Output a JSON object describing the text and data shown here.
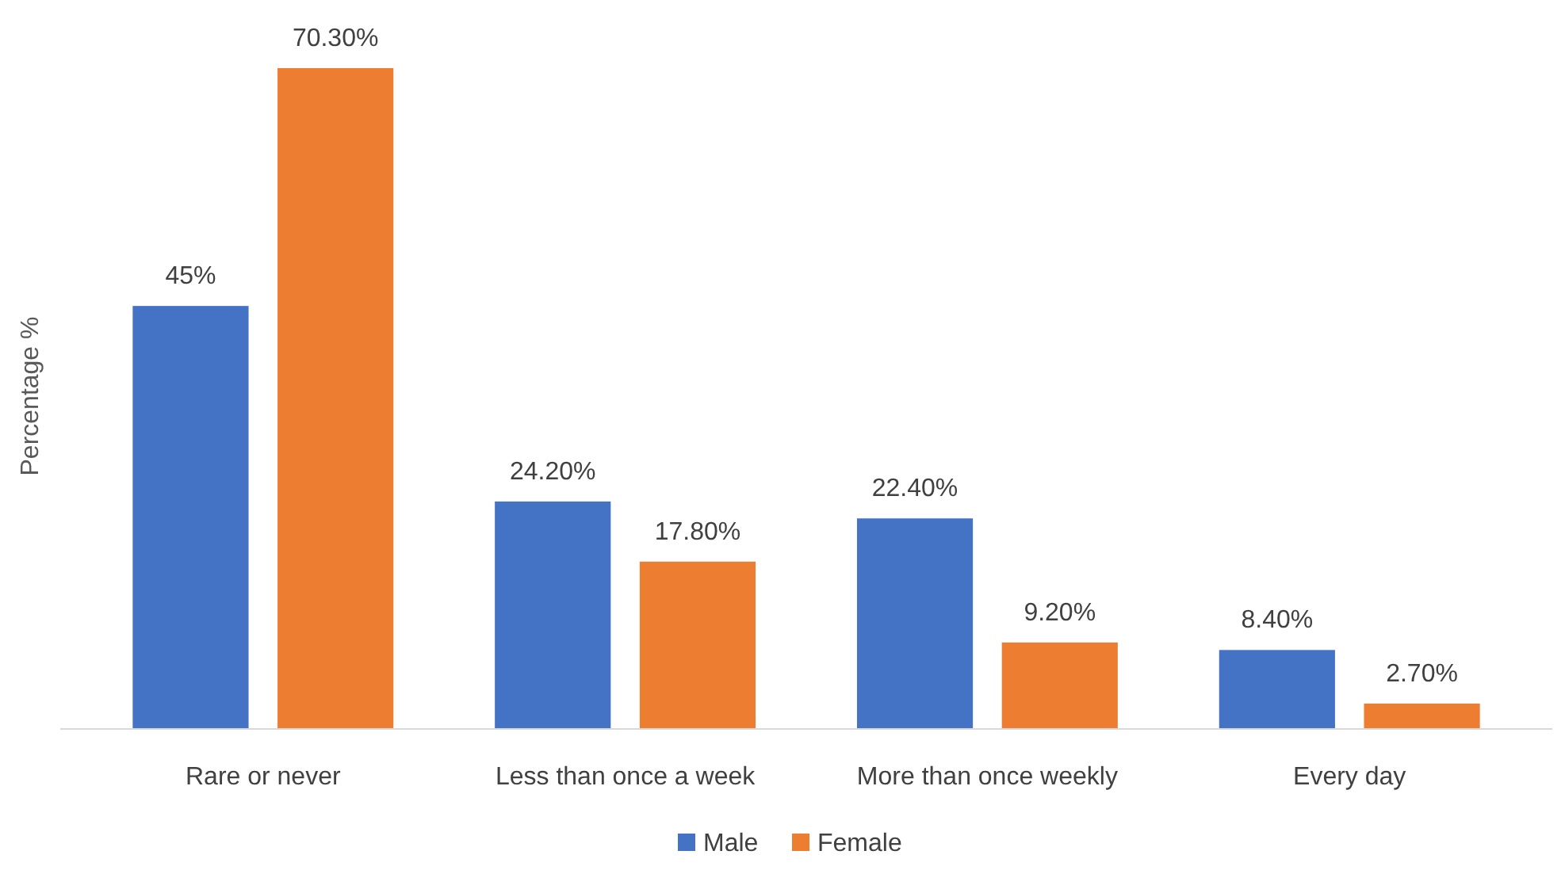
{
  "chart_data": {
    "type": "bar",
    "ylabel": "Percentage %",
    "categories": [
      "Rare or never",
      "Less than once a week",
      "More than once weekly",
      "Every day"
    ],
    "series": [
      {
        "name": "Male",
        "color": "#4472c4",
        "values": [
          45,
          24.2,
          22.4,
          8.4
        ],
        "value_labels": [
          "45%",
          "24.20%",
          "22.40%",
          "8.40%"
        ]
      },
      {
        "name": "Female",
        "color": "#ed7d31",
        "values": [
          70.3,
          17.8,
          9.2,
          2.7
        ],
        "value_labels": [
          "70.30%",
          "17.80%",
          "9.20%",
          "2.70%"
        ]
      }
    ],
    "legend": "bottom"
  }
}
